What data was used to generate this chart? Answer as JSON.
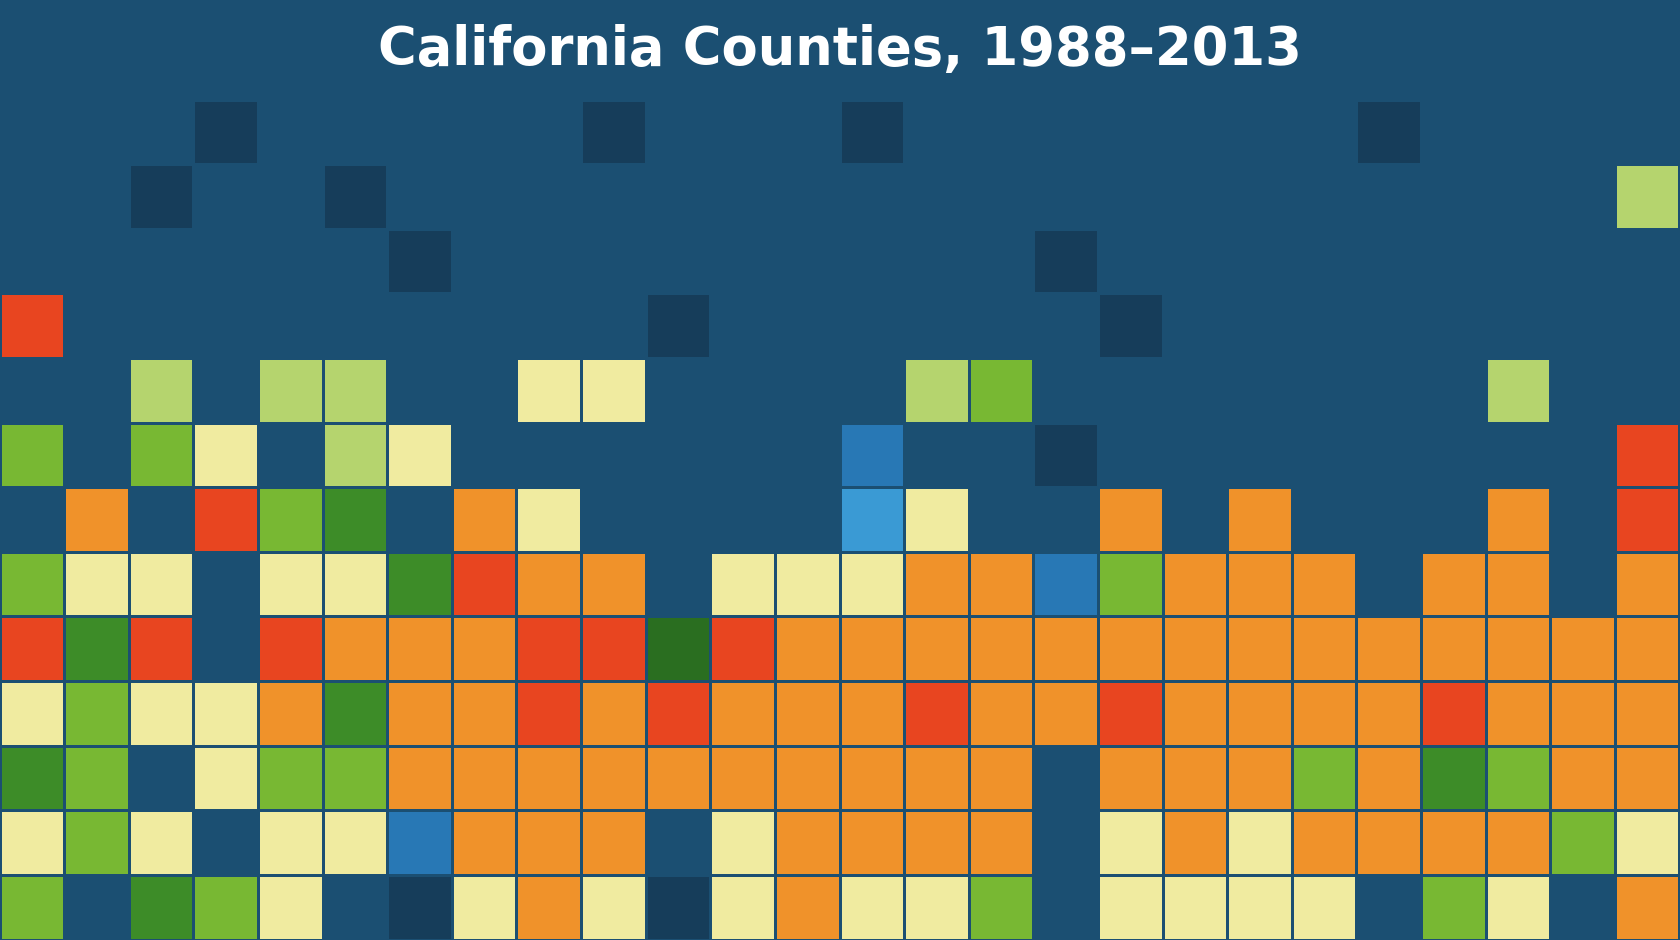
{
  "title": "California Counties, 1988–2013",
  "bg_color": "#1b4f72",
  "title_color": "#ffffff",
  "title_fontsize": 38,
  "color_map": {
    "0": "#1b4f72",
    "1": "#163d5a",
    "2": "#1e6095",
    "3": "#3a8abf",
    "4": "#b5d46e",
    "5": "#78b833",
    "6": "#3d8c28",
    "7": "#2a6e2a",
    "8": "#f0f0a0",
    "9": "#f5d870",
    "10": "#f5b040",
    "11": "#f08030",
    "12": "#e85020",
    "13": "#cc1a10",
    "14": "#a01010",
    "15": "#4a9a30"
  },
  "grid": [
    [
      0,
      0,
      0,
      1,
      0,
      0,
      0,
      0,
      0,
      1,
      0,
      0,
      0,
      1,
      0,
      0,
      0,
      0,
      0,
      0,
      0,
      1,
      0,
      0,
      0,
      0
    ],
    [
      0,
      0,
      1,
      0,
      0,
      1,
      0,
      0,
      0,
      0,
      0,
      0,
      0,
      0,
      0,
      0,
      0,
      0,
      0,
      0,
      0,
      0,
      0,
      0,
      0,
      4
    ],
    [
      0,
      0,
      0,
      0,
      0,
      0,
      1,
      0,
      0,
      0,
      0,
      0,
      0,
      0,
      0,
      0,
      1,
      0,
      0,
      0,
      0,
      0,
      0,
      0,
      0,
      0
    ],
    [
      12,
      0,
      0,
      0,
      0,
      0,
      0,
      0,
      0,
      0,
      1,
      0,
      0,
      0,
      0,
      0,
      0,
      1,
      0,
      0,
      0,
      0,
      0,
      0,
      0,
      0
    ],
    [
      0,
      0,
      4,
      0,
      4,
      4,
      0,
      0,
      8,
      8,
      0,
      0,
      0,
      0,
      4,
      5,
      0,
      0,
      0,
      0,
      0,
      0,
      0,
      4,
      0,
      0
    ],
    [
      5,
      0,
      5,
      8,
      0,
      4,
      8,
      0,
      0,
      0,
      0,
      0,
      0,
      2,
      0,
      0,
      1,
      0,
      0,
      0,
      0,
      0,
      0,
      0,
      0,
      12
    ],
    [
      0,
      11,
      0,
      12,
      5,
      6,
      0,
      11,
      8,
      0,
      0,
      0,
      0,
      3,
      8,
      0,
      0,
      11,
      0,
      11,
      0,
      0,
      0,
      11,
      0,
      12
    ],
    [
      5,
      8,
      8,
      0,
      8,
      8,
      6,
      12,
      11,
      11,
      0,
      8,
      8,
      8,
      11,
      11,
      2,
      5,
      11,
      11,
      11,
      0,
      11,
      11,
      0,
      11
    ],
    [
      12,
      6,
      12,
      0,
      12,
      11,
      11,
      11,
      12,
      12,
      7,
      12,
      11,
      11,
      11,
      11,
      11,
      11,
      11,
      11,
      11,
      11,
      11,
      11,
      11,
      11
    ],
    [
      8,
      5,
      8,
      8,
      11,
      6,
      11,
      11,
      12,
      11,
      12,
      11,
      11,
      11,
      12,
      11,
      11,
      12,
      11,
      11,
      11,
      11,
      12,
      11,
      11,
      11
    ],
    [
      6,
      5,
      0,
      8,
      5,
      5,
      11,
      11,
      11,
      11,
      11,
      11,
      11,
      11,
      11,
      11,
      0,
      11,
      11,
      11,
      5,
      11,
      6,
      5,
      11,
      11
    ],
    [
      8,
      5,
      8,
      0,
      8,
      8,
      2,
      11,
      11,
      11,
      0,
      8,
      11,
      11,
      11,
      11,
      0,
      8,
      11,
      8,
      11,
      11,
      11,
      11,
      5,
      8
    ],
    [
      5,
      0,
      6,
      5,
      8,
      0,
      1,
      8,
      11,
      8,
      1,
      8,
      11,
      8,
      8,
      5,
      0,
      8,
      8,
      8,
      8,
      0,
      5,
      8,
      0,
      11
    ]
  ],
  "n_rows": 13,
  "n_cols": 26
}
